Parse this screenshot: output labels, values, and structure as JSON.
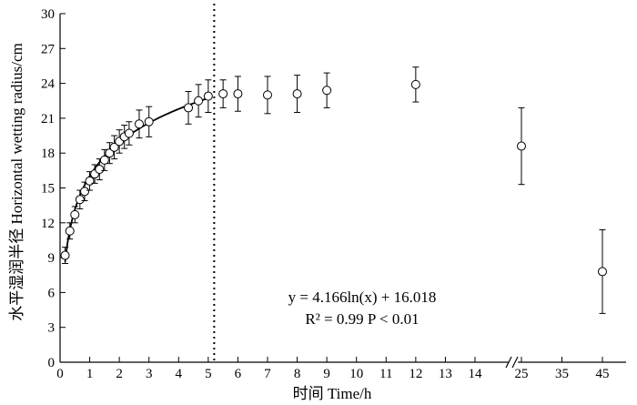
{
  "chart_data": {
    "type": "scatter",
    "xlabel": "时间 Time/h",
    "ylabel": "水平湿润半径 Horizontal wetting radius/cm",
    "ylim": [
      0,
      30
    ],
    "yticks": [
      0,
      3,
      6,
      9,
      12,
      15,
      18,
      21,
      24,
      27,
      30
    ],
    "xticks": [
      "0",
      "1",
      "2",
      "3",
      "4",
      "5",
      "6",
      "7",
      "8",
      "9",
      "10",
      "11",
      "12",
      "13",
      "14",
      "25",
      "35",
      "45"
    ],
    "x_axis_break": true,
    "grid": false,
    "points": [
      {
        "x": 0.17,
        "y": 9.2,
        "err": 0.7
      },
      {
        "x": 0.33,
        "y": 11.3,
        "err": 0.7
      },
      {
        "x": 0.5,
        "y": 12.7,
        "err": 0.7
      },
      {
        "x": 0.67,
        "y": 14.0,
        "err": 0.8
      },
      {
        "x": 0.83,
        "y": 14.7,
        "err": 0.8
      },
      {
        "x": 1.0,
        "y": 15.6,
        "err": 0.8
      },
      {
        "x": 1.17,
        "y": 16.2,
        "err": 0.8
      },
      {
        "x": 1.33,
        "y": 16.6,
        "err": 0.9
      },
      {
        "x": 1.5,
        "y": 17.4,
        "err": 0.9
      },
      {
        "x": 1.67,
        "y": 18.0,
        "err": 0.9
      },
      {
        "x": 1.83,
        "y": 18.5,
        "err": 1.0
      },
      {
        "x": 2.0,
        "y": 19.0,
        "err": 1.0
      },
      {
        "x": 2.17,
        "y": 19.4,
        "err": 1.0
      },
      {
        "x": 2.33,
        "y": 19.7,
        "err": 1.0
      },
      {
        "x": 2.67,
        "y": 20.5,
        "err": 1.2
      },
      {
        "x": 3.0,
        "y": 20.7,
        "err": 1.3
      },
      {
        "x": 4.33,
        "y": 21.9,
        "err": 1.4
      },
      {
        "x": 4.67,
        "y": 22.5,
        "err": 1.4
      },
      {
        "x": 5.0,
        "y": 22.9,
        "err": 1.4
      },
      {
        "x": 5.5,
        "y": 23.1,
        "err": 1.2
      },
      {
        "x": 6.0,
        "y": 23.1,
        "err": 1.5
      },
      {
        "x": 7.0,
        "y": 23.0,
        "err": 1.6
      },
      {
        "x": 8.0,
        "y": 23.1,
        "err": 1.6
      },
      {
        "x": 9.0,
        "y": 23.4,
        "err": 1.5
      },
      {
        "x": 12.0,
        "y": 23.9,
        "err": 1.5
      },
      {
        "x": 25.0,
        "y": 18.6,
        "err": 3.3
      },
      {
        "x": 45.0,
        "y": 7.8,
        "err": 3.6
      }
    ],
    "fit": {
      "type": "log",
      "a": 4.166,
      "b": 16.018,
      "x_range": [
        0.17,
        5.0
      ]
    },
    "vertical_marker_x": 5.2,
    "annotation": {
      "equation": "y = 4.166ln(x) + 16.018",
      "stats": "R² = 0.99  P < 0.01"
    }
  }
}
